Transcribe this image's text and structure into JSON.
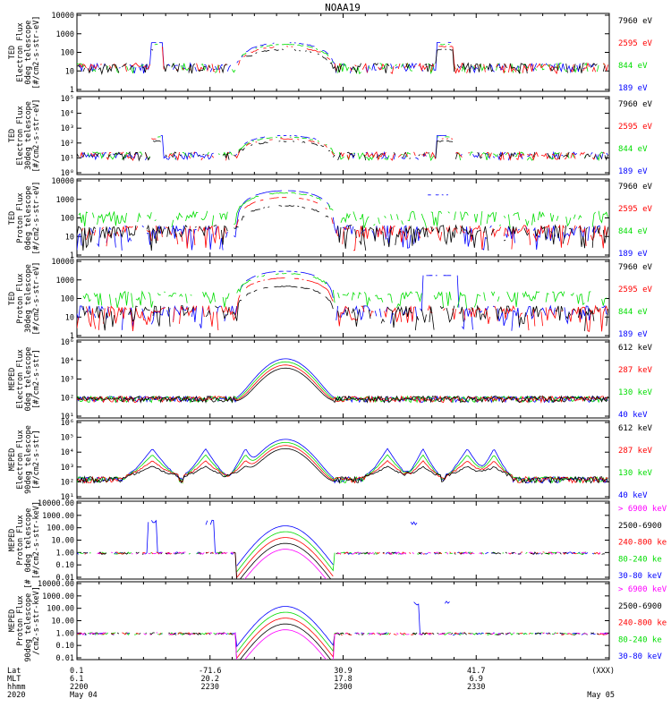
{
  "title": "NOAA19",
  "colors": {
    "black": "#000000",
    "red": "#ff0000",
    "green": "#00dd00",
    "blue": "#0000ff",
    "magenta": "#ff00ff"
  },
  "bottom_axis": {
    "row_labels": [
      "Lat",
      "MLT",
      "hhmm",
      "2020"
    ],
    "ticks": [
      {
        "x": 0,
        "vals": [
          "0.1",
          "6.1",
          "2200",
          "May 04"
        ]
      },
      {
        "x": 30,
        "vals": [
          "-71.6",
          "20.2",
          "2230",
          ""
        ]
      },
      {
        "x": 60,
        "vals": [
          "30.9",
          "17.8",
          "2300",
          ""
        ]
      },
      {
        "x": 90,
        "vals": [
          "41.7",
          "6.9",
          "2330",
          ""
        ]
      },
      {
        "x": 120,
        "vals": [
          "(XXX)",
          "",
          "",
          "May 05"
        ]
      }
    ]
  },
  "chart_data": [
    {
      "type": "line",
      "ylabel": [
        "TED",
        "Electron Flux",
        "0deg telescope",
        "[#/cm2-s-str-eV]"
      ],
      "scale": "log",
      "ylim": [
        1,
        10000
      ],
      "ytick_labels": [
        "10000",
        "1000",
        "100",
        "10",
        "1"
      ],
      "legend": [
        {
          "name": "7960 eV",
          "color": "black"
        },
        {
          "name": "2595 eV",
          "color": "red"
        },
        {
          "name": "844 eV",
          "color": "green"
        },
        {
          "name": "189 eV",
          "color": "blue"
        }
      ]
    },
    {
      "type": "line",
      "ylabel": [
        "TED",
        "Electron Flux",
        "30deg telescope",
        "[#/cm2-s-str-eV]"
      ],
      "scale": "log",
      "ylim": [
        1,
        100000
      ],
      "ytick_labels": [
        "10⁵",
        "10⁴",
        "10³",
        "10²",
        "10¹",
        "10⁰"
      ],
      "legend": [
        {
          "name": "7960 eV",
          "color": "black"
        },
        {
          "name": "2595 eV",
          "color": "red"
        },
        {
          "name": "844 eV",
          "color": "green"
        },
        {
          "name": "189 eV",
          "color": "blue"
        }
      ]
    },
    {
      "type": "line",
      "ylabel": [
        "TED",
        "Proton Flux",
        "0deg telescope",
        "[#/cm2-s-str-eV]"
      ],
      "scale": "log",
      "ylim": [
        1,
        10000
      ],
      "ytick_labels": [
        "10000",
        "1000",
        "100",
        "10",
        "1"
      ],
      "legend": [
        {
          "name": "7960 eV",
          "color": "black"
        },
        {
          "name": "2595 eV",
          "color": "red"
        },
        {
          "name": "844 eV",
          "color": "green"
        },
        {
          "name": "189 eV",
          "color": "blue"
        }
      ]
    },
    {
      "type": "line",
      "ylabel": [
        "TED",
        "Proton Flux",
        "30deg telescope",
        "[#/cm2-s-str-eV]"
      ],
      "scale": "log",
      "ylim": [
        1,
        10000
      ],
      "ytick_labels": [
        "10000",
        "1000",
        "100",
        "10",
        "1"
      ],
      "legend": [
        {
          "name": "7960 eV",
          "color": "black"
        },
        {
          "name": "2595 eV",
          "color": "red"
        },
        {
          "name": "844 eV",
          "color": "green"
        },
        {
          "name": "189 eV",
          "color": "blue"
        }
      ]
    },
    {
      "type": "line",
      "ylabel": [
        "MEPED",
        "Electron Flux",
        "0deg telescope",
        "[#/cm2-s-str]"
      ],
      "scale": "log",
      "ylim": [
        10,
        1000000
      ],
      "ytick_labels": [
        "10⁶",
        "10⁴",
        "10³",
        "10²",
        "10¹"
      ],
      "legend": [
        {
          "name": "612 keV",
          "color": "black"
        },
        {
          "name": "287 keV",
          "color": "red"
        },
        {
          "name": "130 keV",
          "color": "green"
        },
        {
          "name": "40 keV",
          "color": "blue"
        }
      ]
    },
    {
      "type": "line",
      "ylabel": [
        "MEPED",
        "Electron Flux",
        "90deg telescope",
        "[#/cm2-s-str]"
      ],
      "scale": "log",
      "ylim": [
        10,
        1000000
      ],
      "ytick_labels": [
        "10⁶",
        "10⁵",
        "10⁴",
        "10³",
        "10²",
        "10¹"
      ],
      "legend": [
        {
          "name": "612 keV",
          "color": "black"
        },
        {
          "name": "287 keV",
          "color": "red"
        },
        {
          "name": "130 keV",
          "color": "green"
        },
        {
          "name": "40 keV",
          "color": "blue"
        }
      ]
    },
    {
      "type": "line",
      "ylabel": [
        "MEPED",
        "Proton Flux",
        "0deg telescope",
        "[#/cm2-s-str-keV]"
      ],
      "scale": "log",
      "ylim": [
        0.01,
        10000
      ],
      "ytick_labels": [
        "10000.00",
        "1000.00",
        "100.00",
        "10.00",
        "1.00",
        "0.10",
        "0.01"
      ],
      "legend": [
        {
          "name": "> 6900 keV",
          "color": "magenta"
        },
        {
          "name": "2500-6900",
          "color": "black"
        },
        {
          "name": "240-800 ke",
          "color": "red"
        },
        {
          "name": "80-240 ke",
          "color": "green"
        },
        {
          "name": "30-80 keV",
          "color": "blue"
        }
      ]
    },
    {
      "type": "line",
      "ylabel": [
        "MEPED",
        "Proton Flux",
        "90deg telescope [#",
        "/cm2-s-str-keV]"
      ],
      "scale": "log",
      "ylim": [
        0.01,
        10000
      ],
      "ytick_labels": [
        "10000.00",
        "1000.00",
        "100.00",
        "10.00",
        "1.00",
        "0.10",
        "0.01"
      ],
      "legend": [
        {
          "name": "> 6900 keV",
          "color": "magenta"
        },
        {
          "name": "2500-6900",
          "color": "black"
        },
        {
          "name": "240-800 ke",
          "color": "red"
        },
        {
          "name": "80-240 ke",
          "color": "green"
        },
        {
          "name": "30-80 keV",
          "color": "blue"
        }
      ]
    }
  ]
}
